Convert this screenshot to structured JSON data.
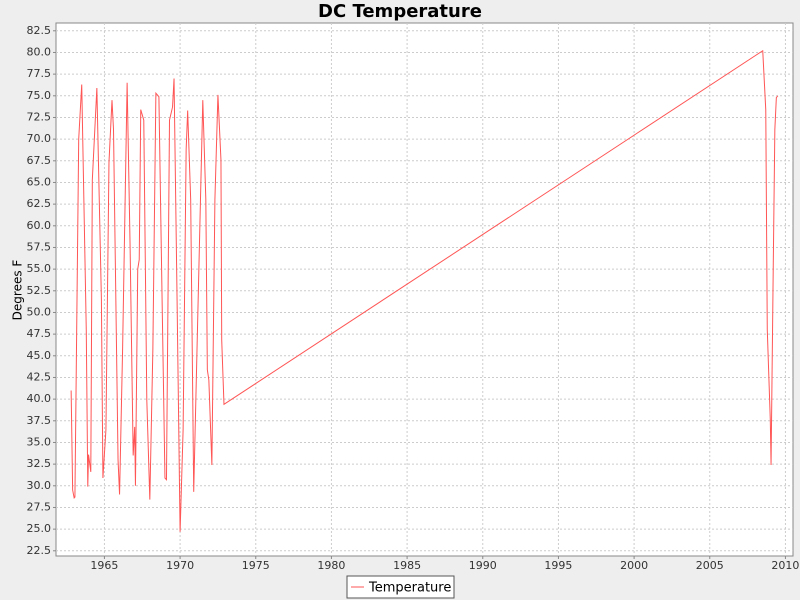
{
  "chart_data": {
    "type": "line",
    "title": "DC Temperature",
    "y_label": "Degrees F",
    "x": [
      1962.8,
      1962.9,
      1963.0,
      1963.05,
      1963.3,
      1963.5,
      1963.8,
      1963.9,
      1963.95,
      1964.1,
      1964.2,
      1964.5,
      1964.8,
      1964.9,
      1965.1,
      1965.3,
      1965.5,
      1965.6,
      1965.9,
      1966.0,
      1966.2,
      1966.5,
      1966.7,
      1966.9,
      1967.0,
      1967.05,
      1967.2,
      1967.3,
      1967.4,
      1967.6,
      1967.8,
      1968.0,
      1968.2,
      1968.4,
      1968.6,
      1968.8,
      1969.0,
      1969.1,
      1969.3,
      1969.5,
      1969.6,
      1969.8,
      1970.0,
      1970.2,
      1970.4,
      1970.5,
      1970.7,
      1970.9,
      1971.3,
      1971.5,
      1971.7,
      1971.8,
      1971.9,
      1972.1,
      1972.3,
      1972.5,
      1972.7,
      1972.75,
      1972.9,
      2008.5,
      2008.6,
      2008.7,
      2008.8,
      2009.0,
      2009.05,
      2009.2,
      2009.3,
      2009.4,
      2009.5
    ],
    "series": [
      {
        "name": "Temperature",
        "color": "#ff5555",
        "values": [
          41.0,
          29.5,
          28.6,
          28.7,
          70,
          76.3,
          48,
          29.9,
          33.6,
          31.6,
          65.3,
          75.9,
          51.5,
          30.9,
          36.5,
          67.3,
          74.5,
          71.1,
          33,
          29,
          45.7,
          76.5,
          57.2,
          33.5,
          36.8,
          30,
          55,
          56.1,
          73.4,
          72.2,
          39.9,
          28.4,
          45.7,
          75.3,
          74.9,
          52.6,
          30.9,
          30.7,
          72.2,
          73.7,
          77.0,
          51.5,
          24.7,
          36.5,
          68.8,
          73.3,
          63,
          29.3,
          59.5,
          74.5,
          63,
          43.4,
          42.2,
          32.4,
          63,
          75.1,
          67.6,
          46.8,
          39.4,
          80.2,
          76.8,
          73.4,
          48,
          37.6,
          32.4,
          56.1,
          71.1,
          74.8,
          75
        ]
      }
    ],
    "xlim": [
      1961.8,
      2010.5
    ],
    "ylim": [
      21.9,
      83.4
    ],
    "xticks": [
      1965,
      1970,
      1975,
      1980,
      1985,
      1990,
      1995,
      2000,
      2005,
      2010
    ],
    "yticks": [
      {
        "value": 22.5,
        "label": "22.5"
      },
      {
        "value": 25,
        "label": "25.0"
      },
      {
        "value": 27.5,
        "label": "27.5"
      },
      {
        "value": 30,
        "label": "30.0"
      },
      {
        "value": 32.5,
        "label": "32.5"
      },
      {
        "value": 35,
        "label": "35.0"
      },
      {
        "value": 37.5,
        "label": "37.5"
      },
      {
        "value": 40,
        "label": "40.0"
      },
      {
        "value": 42.5,
        "label": "42.5"
      },
      {
        "value": 45,
        "label": "45.0"
      },
      {
        "value": 47.5,
        "label": "47.5"
      },
      {
        "value": 50,
        "label": "50.0"
      },
      {
        "value": 52.5,
        "label": "52.5"
      },
      {
        "value": 55,
        "label": "55.0"
      },
      {
        "value": 57.5,
        "label": "57.5"
      },
      {
        "value": 60,
        "label": "60.0"
      },
      {
        "value": 62.5,
        "label": "62.5"
      },
      {
        "value": 65,
        "label": "65.0"
      },
      {
        "value": 67.5,
        "label": "67.5"
      },
      {
        "value": 70,
        "label": "70.0"
      },
      {
        "value": 72.5,
        "label": "72.5"
      },
      {
        "value": 75,
        "label": "75.0"
      },
      {
        "value": 77.5,
        "label": "77.5"
      },
      {
        "value": 80,
        "label": "80.0"
      },
      {
        "value": 82.5,
        "label": "82.5"
      }
    ],
    "grid": true
  }
}
